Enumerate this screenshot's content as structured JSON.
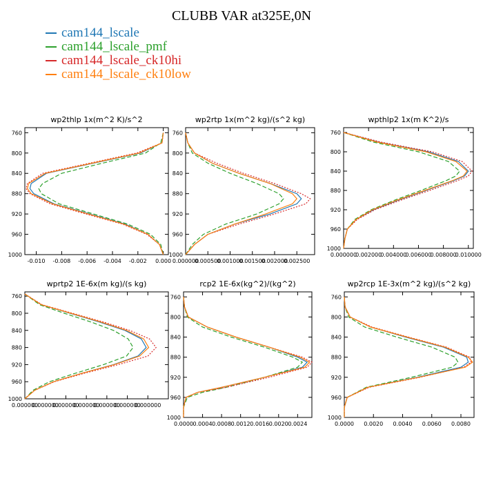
{
  "title": "CLUBB VAR at325E,0N",
  "legend": [
    {
      "label": "cam144_lscale",
      "color": "#1f77b4"
    },
    {
      "label": "cam144_lscale_pmf",
      "color": "#2ca02c"
    },
    {
      "label": "cam144_lscale_ck10hi",
      "color": "#d62728"
    },
    {
      "label": "cam144_lscale_ck10low",
      "color": "#ff7f0e"
    }
  ],
  "chart_data": [
    {
      "type": "line",
      "title": "wp2thlp  1x(m^2 K)/s^2",
      "ylim": [
        1000,
        750
      ],
      "yticks": [
        760,
        800,
        840,
        880,
        920,
        960,
        1000
      ],
      "xlim": [
        -0.0109,
        0.0004
      ],
      "xticks": [
        -0.01,
        -0.008,
        -0.006,
        -0.004,
        -0.002,
        0.0
      ],
      "xtick_labels": [
        "-0.010",
        "-0.008",
        "-0.006",
        "-0.004",
        "-0.002",
        "0.000"
      ],
      "y": [
        760,
        780,
        800,
        820,
        840,
        860,
        870,
        880,
        900,
        920,
        940,
        960,
        980,
        1000
      ],
      "series": [
        {
          "name": "cam144_lscale",
          "x": [
            0.0,
            -0.0001,
            -0.0018,
            -0.0055,
            -0.0092,
            -0.0104,
            -0.0105,
            -0.0102,
            -0.0086,
            -0.0058,
            -0.003,
            -0.0012,
            -0.0003,
            0.0
          ],
          "dash": "solid"
        },
        {
          "name": "cam144_lscale_pmf",
          "x": [
            0.0,
            -0.0002,
            -0.0014,
            -0.0048,
            -0.008,
            -0.0095,
            -0.0098,
            -0.0096,
            -0.0082,
            -0.0055,
            -0.0028,
            -0.001,
            -0.0002,
            0.0
          ],
          "dash": "6,3"
        },
        {
          "name": "cam144_lscale_ck10hi",
          "x": [
            0.0,
            -0.0001,
            -0.0021,
            -0.0058,
            -0.0095,
            -0.0107,
            -0.0108,
            -0.0105,
            -0.0089,
            -0.0061,
            -0.0032,
            -0.0013,
            -0.0003,
            0.0
          ],
          "dash": "2,2"
        },
        {
          "name": "cam144_lscale_ck10low",
          "x": [
            0.0,
            -0.0001,
            -0.0019,
            -0.0056,
            -0.0093,
            -0.0106,
            -0.0107,
            -0.0104,
            -0.0087,
            -0.0059,
            -0.0031,
            -0.0012,
            -0.0003,
            0.0
          ],
          "dash": "solid"
        }
      ]
    },
    {
      "type": "line",
      "title": "wp2rtp  1x(m^2 kg)/(s^2 kg)",
      "ylim": [
        1000,
        750
      ],
      "yticks": [
        760,
        800,
        840,
        880,
        920,
        960,
        1000
      ],
      "xlim": [
        0.0,
        0.0029
      ],
      "xticks": [
        0.0,
        0.0005,
        0.001,
        0.0015,
        0.002,
        0.0025
      ],
      "xtick_labels": [
        "0.000000",
        "0.000500",
        "0.001000",
        "0.001500",
        "0.002000",
        "0.002500"
      ],
      "y": [
        760,
        780,
        800,
        820,
        840,
        860,
        880,
        890,
        900,
        920,
        940,
        960,
        980,
        1000
      ],
      "series": [
        {
          "name": "cam144_lscale",
          "x": [
            0.0,
            5e-05,
            0.0002,
            0.0006,
            0.0012,
            0.0019,
            0.0025,
            0.0026,
            0.0025,
            0.0019,
            0.0011,
            0.0005,
            0.0002,
            0.0
          ],
          "dash": "solid"
        },
        {
          "name": "cam144_lscale_pmf",
          "x": [
            0.0,
            5e-05,
            0.00015,
            0.0005,
            0.001,
            0.0016,
            0.0021,
            0.0022,
            0.0021,
            0.0016,
            0.0009,
            0.0004,
            0.00015,
            0.0
          ],
          "dash": "6,3"
        },
        {
          "name": "cam144_lscale_ck10hi",
          "x": [
            0.0,
            5e-05,
            0.0002,
            0.0007,
            0.0013,
            0.002,
            0.0026,
            0.0028,
            0.0027,
            0.002,
            0.0012,
            0.0005,
            0.0002,
            0.0
          ],
          "dash": "2,2"
        },
        {
          "name": "cam144_lscale_ck10low",
          "x": [
            0.0,
            5e-05,
            0.0002,
            0.0006,
            0.0012,
            0.0019,
            0.0024,
            0.0025,
            0.0024,
            0.0018,
            0.0011,
            0.0005,
            0.0002,
            0.0
          ],
          "dash": "solid"
        }
      ]
    },
    {
      "type": "line",
      "title": "wpthlp2  1x(m K^2)/s",
      "ylim": [
        1000,
        750
      ],
      "yticks": [
        760,
        800,
        840,
        880,
        920,
        960,
        1000
      ],
      "xlim": [
        0.0,
        0.0104
      ],
      "xticks": [
        0.0,
        0.002,
        0.004,
        0.006,
        0.008,
        0.01
      ],
      "xtick_labels": [
        "0.000000",
        "0.002000",
        "0.004000",
        "0.006000",
        "0.008000",
        "0.010000"
      ],
      "y": [
        760,
        780,
        800,
        820,
        840,
        850,
        860,
        880,
        900,
        920,
        940,
        960,
        980,
        1000
      ],
      "series": [
        {
          "name": "cam144_lscale",
          "x": [
            0.0,
            0.0028,
            0.0068,
            0.0092,
            0.01,
            0.0097,
            0.0088,
            0.0066,
            0.0044,
            0.0024,
            0.001,
            0.0003,
            0.0001,
            0.0
          ],
          "dash": "solid"
        },
        {
          "name": "cam144_lscale_pmf",
          "x": [
            0.0,
            0.0024,
            0.006,
            0.0084,
            0.0093,
            0.009,
            0.0082,
            0.0062,
            0.0041,
            0.0022,
            0.0009,
            0.0003,
            0.0001,
            0.0
          ],
          "dash": "6,3"
        },
        {
          "name": "cam144_lscale_ck10hi",
          "x": [
            0.0,
            0.003,
            0.0071,
            0.0095,
            0.0103,
            0.01,
            0.0091,
            0.0069,
            0.0046,
            0.0025,
            0.0011,
            0.0003,
            0.0001,
            0.0
          ],
          "dash": "2,2"
        },
        {
          "name": "cam144_lscale_ck10low",
          "x": [
            0.0,
            0.0027,
            0.0066,
            0.009,
            0.0099,
            0.0096,
            0.0087,
            0.0065,
            0.0043,
            0.0023,
            0.001,
            0.0003,
            0.0001,
            0.0
          ],
          "dash": "solid"
        }
      ]
    },
    {
      "type": "line",
      "title": "wprtp2  1E-6x(m kg)/(s kg)",
      "ylim": [
        1000,
        750
      ],
      "yticks": [
        760,
        800,
        840,
        880,
        920,
        960,
        1000
      ],
      "xlim": [
        0.0,
        1.75e-05
      ],
      "xticks": [
        0.0,
        2.5e-06,
        5e-06,
        7.5e-06,
        1e-05,
        1.25e-05,
        1.5e-05
      ],
      "xtick_labels": [
        "0.000000",
        "0.000000",
        "0.000000",
        "0.000000",
        "0.000000",
        "0.000000",
        "0.000000"
      ],
      "y": [
        755,
        780,
        800,
        820,
        840,
        860,
        880,
        900,
        920,
        940,
        960,
        980,
        1000
      ],
      "series": [
        {
          "name": "cam144_lscale",
          "x": [
            0.0,
            2e-06,
            5.5e-06,
            9e-06,
            1.22e-05,
            1.42e-05,
            1.48e-05,
            1.38e-05,
            1.08e-05,
            7e-06,
            3.5e-06,
            1.2e-06,
            0.0
          ],
          "dash": "solid"
        },
        {
          "name": "cam144_lscale_pmf",
          "x": [
            0.0,
            1.8e-06,
            4.8e-06,
            8e-06,
            1.08e-05,
            1.26e-05,
            1.32e-05,
            1.24e-05,
            9.6e-06,
            6.2e-06,
            3e-06,
            1e-06,
            0.0
          ],
          "dash": "6,3"
        },
        {
          "name": "cam144_lscale_ck10hi",
          "x": [
            0.0,
            2.1e-06,
            5.8e-06,
            9.5e-06,
            1.28e-05,
            1.52e-05,
            1.6e-05,
            1.5e-05,
            1.14e-05,
            7.3e-06,
            3.6e-06,
            1.2e-06,
            0.0
          ],
          "dash": "2,2"
        },
        {
          "name": "cam144_lscale_ck10low",
          "x": [
            0.0,
            2e-06,
            5.6e-06,
            9.2e-06,
            1.24e-05,
            1.45e-05,
            1.51e-05,
            1.4e-05,
            1.09e-05,
            7e-06,
            3.5e-06,
            1.2e-06,
            0.0
          ],
          "dash": "solid"
        }
      ]
    },
    {
      "type": "line",
      "title": "rcp2  1E-6x(kg^2)/(kg^2)",
      "ylim": [
        1000,
        750
      ],
      "yticks": [
        760,
        800,
        840,
        880,
        920,
        960,
        1000
      ],
      "xlim": [
        0.0,
        0.0027
      ],
      "xticks": [
        0.0,
        0.0004,
        0.0008,
        0.0012,
        0.0016,
        0.002,
        0.0024
      ],
      "xtick_labels": [
        "0.0000",
        "0.0004",
        "0.0008",
        "0.0012",
        "0.0016",
        "0.0020",
        "0.0024"
      ],
      "y": [
        760,
        780,
        800,
        820,
        840,
        860,
        880,
        890,
        900,
        920,
        940,
        950,
        960,
        980,
        1000
      ],
      "series": [
        {
          "name": "cam144_lscale",
          "x": [
            0.0,
            2e-05,
            0.0001,
            0.0005,
            0.0011,
            0.0018,
            0.0024,
            0.0026,
            0.0025,
            0.0017,
            0.0008,
            0.0003,
            5e-05,
            0.0,
            0.0
          ],
          "dash": "solid"
        },
        {
          "name": "cam144_lscale_pmf",
          "x": [
            0.0,
            2e-05,
            8e-05,
            0.0004,
            0.001,
            0.0017,
            0.0023,
            0.0025,
            0.0024,
            0.0017,
            0.0009,
            0.0004,
            8e-05,
            0.0,
            0.0
          ],
          "dash": "6,3"
        },
        {
          "name": "cam144_lscale_ck10hi",
          "x": [
            0.0,
            2e-05,
            0.0001,
            0.0005,
            0.0011,
            0.0018,
            0.0025,
            0.0027,
            0.0026,
            0.0018,
            0.0009,
            0.0003,
            5e-05,
            0.0,
            0.0
          ],
          "dash": "2,2"
        },
        {
          "name": "cam144_lscale_ck10low",
          "x": [
            0.0,
            2e-05,
            0.0001,
            0.0005,
            0.0011,
            0.0018,
            0.00245,
            0.00265,
            0.00255,
            0.0017,
            0.0008,
            0.0003,
            5e-05,
            0.0,
            0.0
          ],
          "dash": "solid"
        }
      ]
    },
    {
      "type": "line",
      "title": "wp2rcp  1E-3x(m^2 kg)/(s^2 kg)",
      "ylim": [
        1000,
        750
      ],
      "yticks": [
        760,
        800,
        840,
        880,
        920,
        960,
        1000
      ],
      "xlim": [
        0.0,
        0.0089
      ],
      "xticks": [
        0.0,
        0.002,
        0.004,
        0.006,
        0.008
      ],
      "xtick_labels": [
        "0.0000",
        "0.0020",
        "0.0040",
        "0.0060",
        "0.0080"
      ],
      "y": [
        760,
        780,
        800,
        820,
        840,
        860,
        880,
        890,
        900,
        920,
        940,
        960,
        980,
        1000
      ],
      "series": [
        {
          "name": "cam144_lscale",
          "x": [
            0.0,
            5e-05,
            0.0004,
            0.0018,
            0.0042,
            0.0068,
            0.0084,
            0.0085,
            0.008,
            0.005,
            0.0016,
            0.0002,
            0.0,
            0.0
          ],
          "dash": "solid"
        },
        {
          "name": "cam144_lscale_pmf",
          "x": [
            0.0,
            5e-05,
            0.0003,
            0.0014,
            0.0036,
            0.006,
            0.0076,
            0.0078,
            0.0074,
            0.0046,
            0.0015,
            0.0002,
            0.0,
            0.0
          ],
          "dash": "6,3"
        },
        {
          "name": "cam144_lscale_ck10hi",
          "x": [
            0.0,
            5e-05,
            0.0004,
            0.0019,
            0.0044,
            0.007,
            0.0086,
            0.0087,
            0.0082,
            0.0052,
            0.0017,
            0.0002,
            0.0,
            0.0
          ],
          "dash": "2,2"
        },
        {
          "name": "cam144_lscale_ck10low",
          "x": [
            0.0,
            5e-05,
            0.0004,
            0.0018,
            0.0043,
            0.0069,
            0.0085,
            0.0088,
            0.0083,
            0.0051,
            0.0016,
            0.0002,
            0.0,
            0.0
          ],
          "dash": "solid"
        }
      ]
    }
  ]
}
